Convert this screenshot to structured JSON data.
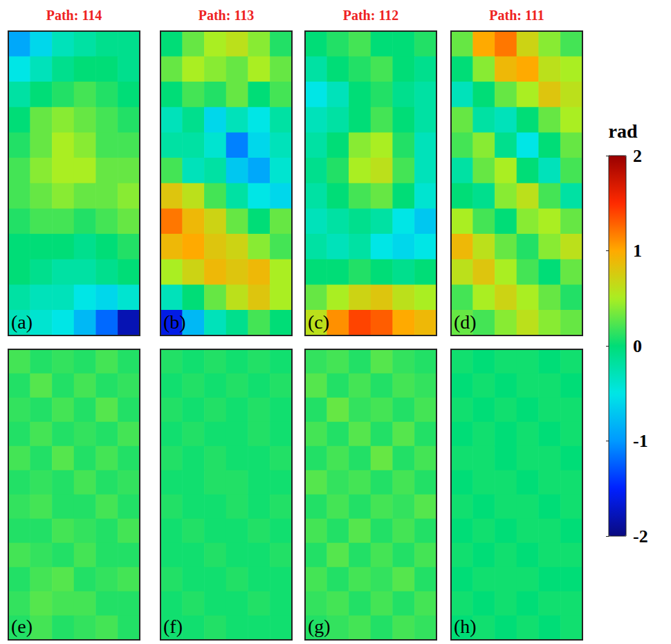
{
  "chart_data": [
    {
      "type": "heatmap",
      "title": "Path: 114",
      "label": "(a)",
      "tick_labels": false,
      "cells": [
        [
          -0.9,
          -0.6,
          -0.3,
          -0.2,
          -0.1,
          -0.1
        ],
        [
          -0.5,
          -0.3,
          -0.1,
          0,
          0,
          -0.1
        ],
        [
          -0.2,
          0,
          0.1,
          0.2,
          0.1,
          0
        ],
        [
          0,
          0.3,
          0.4,
          0.3,
          0.2,
          0.1
        ],
        [
          0.1,
          0.3,
          0.5,
          0.4,
          0.2,
          0.2
        ],
        [
          0.2,
          0.4,
          0.5,
          0.5,
          0.3,
          0.3
        ],
        [
          0.2,
          0.3,
          0.4,
          0.3,
          0.3,
          0.4
        ],
        [
          0.1,
          0.2,
          0.2,
          0.1,
          0.2,
          0.3
        ],
        [
          0,
          0,
          0,
          -0.1,
          0,
          0.1
        ],
        [
          0,
          -0.1,
          -0.2,
          -0.2,
          -0.1,
          0
        ],
        [
          -0.2,
          -0.3,
          -0.3,
          -0.5,
          -0.6,
          -0.4
        ],
        [
          -0.3,
          -0.4,
          -0.5,
          -0.8,
          -1.2,
          -1.8
        ]
      ]
    },
    {
      "type": "heatmap",
      "title": "Path: 113",
      "label": "(b)",
      "tick_labels": false,
      "cells": [
        [
          0,
          0.3,
          0.5,
          0.6,
          0.4,
          0.1
        ],
        [
          0.3,
          0.5,
          0.4,
          0.3,
          0.5,
          0.3
        ],
        [
          0,
          0.2,
          0.1,
          0.3,
          0,
          0.2
        ],
        [
          -0.3,
          -0.1,
          -0.6,
          -0.3,
          -0.5,
          -0.2
        ],
        [
          -0.2,
          -0.2,
          -0.4,
          -1.1,
          -0.6,
          -0.3
        ],
        [
          0.2,
          -0.3,
          -0.2,
          -0.7,
          -0.9,
          -0.4
        ],
        [
          0.8,
          0.6,
          0.2,
          -0.2,
          -0.5,
          -0.6
        ],
        [
          1.2,
          0.9,
          0.7,
          0.3,
          0,
          0.3
        ],
        [
          0.9,
          1.0,
          0.8,
          0.7,
          0.4,
          0.2
        ],
        [
          0.5,
          0.7,
          0.9,
          0.8,
          0.9,
          0.5
        ],
        [
          -0.3,
          0,
          0.3,
          0.6,
          0.8,
          0.5
        ],
        [
          -1.6,
          -0.8,
          -0.3,
          -0.1,
          0.2,
          0
        ]
      ]
    },
    {
      "type": "heatmap",
      "title": "Path: 112",
      "label": "(c)",
      "tick_labels": false,
      "cells": [
        [
          0,
          0.1,
          0.2,
          0,
          0,
          0.1
        ],
        [
          -0.2,
          0,
          0.1,
          0.2,
          0,
          -0.1
        ],
        [
          -0.5,
          -0.3,
          0,
          0.1,
          -0.1,
          -0.2
        ],
        [
          -0.3,
          -0.2,
          0,
          0.2,
          0,
          -0.2
        ],
        [
          -0.2,
          0,
          0.4,
          0.5,
          0.1,
          -0.3
        ],
        [
          -0.1,
          0.1,
          0.5,
          0.6,
          0.2,
          -0.3
        ],
        [
          -0.2,
          0,
          0.2,
          0.3,
          0,
          -0.4
        ],
        [
          -0.3,
          -0.2,
          -0.1,
          -0.2,
          -0.5,
          -0.7
        ],
        [
          -0.2,
          -0.3,
          -0.2,
          -0.5,
          -0.6,
          -0.5
        ],
        [
          0,
          0,
          0.1,
          0,
          -0.1,
          0
        ],
        [
          0.3,
          0.5,
          0.7,
          0.8,
          0.6,
          0.5
        ],
        [
          0.6,
          1.1,
          1.4,
          1.3,
          1.0,
          0.9
        ]
      ]
    },
    {
      "type": "heatmap",
      "title": "Path: 111",
      "label": "(d)",
      "tick_labels": false,
      "cells": [
        [
          0.3,
          1.0,
          1.2,
          0.7,
          0.4,
          0.2
        ],
        [
          0,
          0.4,
          0.9,
          1.0,
          0.6,
          0.5
        ],
        [
          -0.3,
          0,
          0.3,
          0.5,
          0.8,
          0.6
        ],
        [
          0.3,
          -0.2,
          -0.3,
          0,
          0.3,
          0.5
        ],
        [
          0.2,
          0.4,
          -0.1,
          -0.5,
          0,
          0.3
        ],
        [
          -0.2,
          0.3,
          0.5,
          0,
          -0.3,
          0.2
        ],
        [
          0,
          -0.1,
          0.4,
          0.6,
          0.2,
          -0.2
        ],
        [
          0.5,
          0.2,
          0,
          0.4,
          0.5,
          0.3
        ],
        [
          0.9,
          0.6,
          0.3,
          0.1,
          0.4,
          0.6
        ],
        [
          0.6,
          0.8,
          0.5,
          0.2,
          0,
          0.3
        ],
        [
          0.2,
          0.5,
          0.7,
          0.5,
          0.3,
          0.1
        ],
        [
          0.3,
          0.2,
          0.4,
          0.6,
          0.4,
          0.3
        ]
      ]
    },
    {
      "type": "heatmap",
      "label": "(e)",
      "tick_labels": false,
      "cells": [
        [
          0.2,
          0.1,
          0.15,
          0.1,
          0.2,
          0.1
        ],
        [
          0.1,
          0.25,
          0.1,
          0.2,
          0.1,
          0.15
        ],
        [
          0.15,
          0.1,
          0.2,
          0.1,
          0.25,
          0.1
        ],
        [
          0.1,
          0.2,
          0.1,
          0.15,
          0.1,
          0.2
        ],
        [
          0.2,
          0.1,
          0.25,
          0.1,
          0.2,
          0.1
        ],
        [
          0.1,
          0.15,
          0.1,
          0.2,
          0.1,
          0.15
        ],
        [
          0.15,
          0.2,
          0.1,
          0.1,
          0.2,
          0.1
        ],
        [
          0.1,
          0.1,
          0.2,
          0.15,
          0.1,
          0.2
        ],
        [
          0.2,
          0.15,
          0.1,
          0.2,
          0.1,
          0.1
        ],
        [
          0.1,
          0.2,
          0.25,
          0.1,
          0.15,
          0.2
        ],
        [
          0.15,
          0.25,
          0.2,
          0.2,
          0.1,
          0.1
        ],
        [
          0.1,
          0.2,
          0.1,
          0.15,
          0.2,
          0.1
        ]
      ]
    },
    {
      "type": "heatmap",
      "label": "(f)",
      "tick_labels": false,
      "cells": [
        [
          0.1,
          0.05,
          0.1,
          0.05,
          0.1,
          0.05
        ],
        [
          0.05,
          0.1,
          0.05,
          0.1,
          0.05,
          0.1
        ],
        [
          0.1,
          0.05,
          0.1,
          0.05,
          0.1,
          0.05
        ],
        [
          0.05,
          0.1,
          0.05,
          0.05,
          0.1,
          0.05
        ],
        [
          0.1,
          0.05,
          0.1,
          0.05,
          0.05,
          0.1
        ],
        [
          0.05,
          0.05,
          0.1,
          0.1,
          0.05,
          0.05
        ],
        [
          0.1,
          0.05,
          0.05,
          0.1,
          0.05,
          0.1
        ],
        [
          0.05,
          0.1,
          0.05,
          0.05,
          0.1,
          0.05
        ],
        [
          0.05,
          0.05,
          0.1,
          0.05,
          0.05,
          0.1
        ],
        [
          0.1,
          0.05,
          0.05,
          0.1,
          0.05,
          0.05
        ],
        [
          0.05,
          0.1,
          0.05,
          0.05,
          0.1,
          0.05
        ],
        [
          0.05,
          0.05,
          0.1,
          0.05,
          0.05,
          0.05
        ]
      ]
    },
    {
      "type": "heatmap",
      "label": "(g)",
      "tick_labels": false,
      "cells": [
        [
          0.15,
          0.2,
          0.1,
          0.25,
          0.15,
          0.1
        ],
        [
          0.25,
          0.1,
          0.2,
          0.1,
          0.2,
          0.15
        ],
        [
          0.1,
          0.3,
          0.15,
          0.2,
          0.1,
          0.2
        ],
        [
          0.2,
          0.1,
          0.25,
          0.1,
          0.25,
          0.1
        ],
        [
          0.1,
          0.2,
          0.1,
          0.3,
          0.1,
          0.2
        ],
        [
          0.25,
          0.15,
          0.2,
          0.1,
          0.2,
          0.1
        ],
        [
          0.1,
          0.2,
          0.1,
          0.2,
          0.15,
          0.25
        ],
        [
          0.2,
          0.1,
          0.25,
          0.1,
          0.2,
          0.1
        ],
        [
          0.1,
          0.25,
          0.1,
          0.2,
          0.1,
          0.2
        ],
        [
          0.2,
          0.1,
          0.2,
          0.15,
          0.25,
          0.1
        ],
        [
          0.15,
          0.2,
          0.1,
          0.2,
          0.1,
          0.2
        ],
        [
          0.1,
          0.15,
          0.2,
          0.1,
          0.2,
          0.15
        ]
      ]
    },
    {
      "type": "heatmap",
      "label": "(h)",
      "tick_labels": false,
      "cells": [
        [
          0.05,
          0,
          0.05,
          0.05,
          0,
          0.05
        ],
        [
          0,
          0.05,
          0,
          0.05,
          0.05,
          0
        ],
        [
          0.05,
          0,
          0.05,
          0,
          0.05,
          0.05
        ],
        [
          0,
          0.05,
          0,
          0.05,
          0,
          0.05
        ],
        [
          0.05,
          0.05,
          0,
          0.05,
          0.05,
          0
        ],
        [
          0,
          0.05,
          0.05,
          0,
          0.05,
          0.05
        ],
        [
          0.05,
          0,
          0.05,
          0.05,
          0,
          0.05
        ],
        [
          0,
          0.05,
          0,
          0.05,
          0.05,
          0
        ],
        [
          0.05,
          0,
          0.05,
          0,
          0.05,
          0.05
        ],
        [
          0,
          0.05,
          0.05,
          0.05,
          0,
          0
        ],
        [
          0.05,
          0,
          0.05,
          0,
          0.05,
          0.05
        ],
        [
          0,
          0.05,
          0,
          0.05,
          0,
          0.05
        ]
      ]
    }
  ],
  "colorbar": {
    "label": "rad",
    "range": [
      -2,
      2
    ],
    "ticks": [
      -2,
      -1,
      0,
      1,
      2
    ]
  }
}
